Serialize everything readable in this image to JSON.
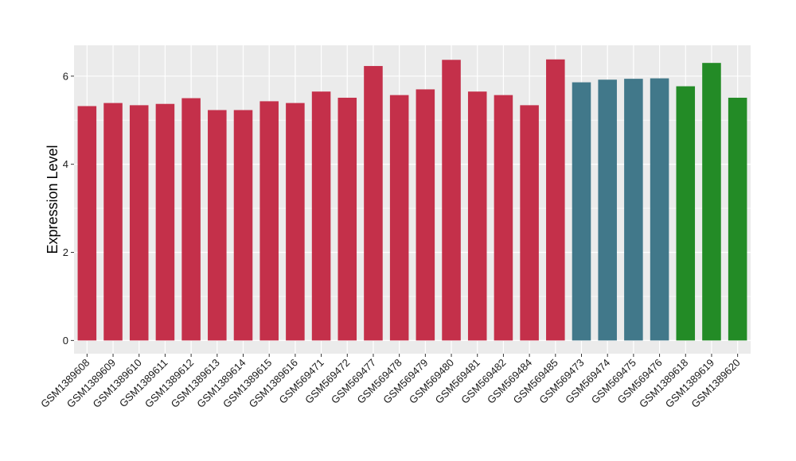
{
  "chart_data": {
    "type": "bar",
    "title": "",
    "xlabel": "",
    "ylabel": "Expression Level",
    "ylim": [
      -0.3,
      6.7
    ],
    "yticks": [
      0,
      2,
      4,
      6
    ],
    "grid": true,
    "background": "#EBEBEB",
    "categories": [
      "GSM1389608",
      "GSM1389609",
      "GSM1389610",
      "GSM1389611",
      "GSM1389612",
      "GSM1389613",
      "GSM1389614",
      "GSM1389615",
      "GSM1389616",
      "GSM569471",
      "GSM569472",
      "GSM569477",
      "GSM569478",
      "GSM569479",
      "GSM569480",
      "GSM569481",
      "GSM569482",
      "GSM569484",
      "GSM569485",
      "GSM569473",
      "GSM569474",
      "GSM569475",
      "GSM569476",
      "GSM1389618",
      "GSM1389619",
      "GSM1389620"
    ],
    "values": [
      5.32,
      5.39,
      5.34,
      5.37,
      5.5,
      5.23,
      5.23,
      5.43,
      5.39,
      5.65,
      5.51,
      6.23,
      5.57,
      5.7,
      6.37,
      5.65,
      5.57,
      5.34,
      6.38,
      5.86,
      5.92,
      5.94,
      5.95,
      5.77,
      6.3,
      5.51
    ],
    "colors": [
      "#C4304A",
      "#C4304A",
      "#C4304A",
      "#C4304A",
      "#C4304A",
      "#C4304A",
      "#C4304A",
      "#C4304A",
      "#C4304A",
      "#C4304A",
      "#C4304A",
      "#C4304A",
      "#C4304A",
      "#C4304A",
      "#C4304A",
      "#C4304A",
      "#C4304A",
      "#C4304A",
      "#C4304A",
      "#41788A",
      "#41788A",
      "#41788A",
      "#41788A",
      "#238B26",
      "#238B26",
      "#238B26"
    ]
  }
}
